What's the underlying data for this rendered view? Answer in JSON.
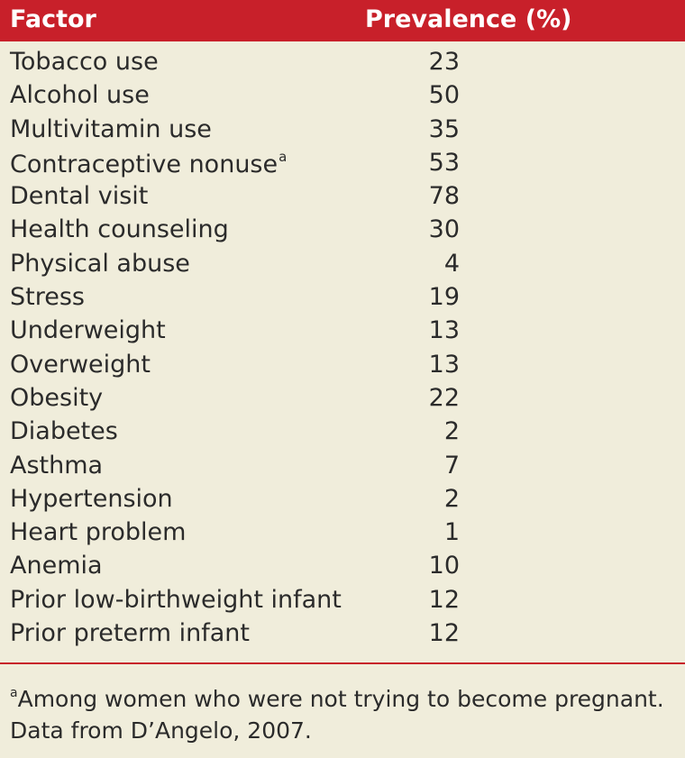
{
  "table": {
    "header": {
      "factor": "Factor",
      "prevalence": "Prevalence (%)"
    },
    "rows": [
      {
        "factor": "Tobacco use",
        "value": "23",
        "note": ""
      },
      {
        "factor": "Alcohol use",
        "value": "50",
        "note": ""
      },
      {
        "factor": "Multivitamin use",
        "value": "35",
        "note": ""
      },
      {
        "factor": "Contraceptive nonuse",
        "value": "53",
        "note": "a"
      },
      {
        "factor": "Dental visit",
        "value": "78",
        "note": ""
      },
      {
        "factor": "Health counseling",
        "value": "30",
        "note": ""
      },
      {
        "factor": "Physical abuse",
        "value": "4",
        "note": ""
      },
      {
        "factor": "Stress",
        "value": "19",
        "note": ""
      },
      {
        "factor": "Underweight",
        "value": "13",
        "note": ""
      },
      {
        "factor": "Overweight",
        "value": "13",
        "note": ""
      },
      {
        "factor": "Obesity",
        "value": "22",
        "note": ""
      },
      {
        "factor": "Diabetes",
        "value": "2",
        "note": ""
      },
      {
        "factor": "Asthma",
        "value": "7",
        "note": ""
      },
      {
        "factor": "Hypertension",
        "value": "2",
        "note": ""
      },
      {
        "factor": "Heart problem",
        "value": "1",
        "note": ""
      },
      {
        "factor": "Anemia",
        "value": "10",
        "note": ""
      },
      {
        "factor": "Prior low-birthweight infant",
        "value": "12",
        "note": ""
      },
      {
        "factor": "Prior preterm infant",
        "value": "12",
        "note": ""
      }
    ]
  },
  "footnote": {
    "marker": "a",
    "text": "Among women who were not trying to become pregnant.",
    "source": "Data from D’Angelo, 2007."
  },
  "colors": {
    "header_bg": "#c8202a",
    "page_bg": "#f0eddb",
    "text": "#2b2b2b"
  }
}
